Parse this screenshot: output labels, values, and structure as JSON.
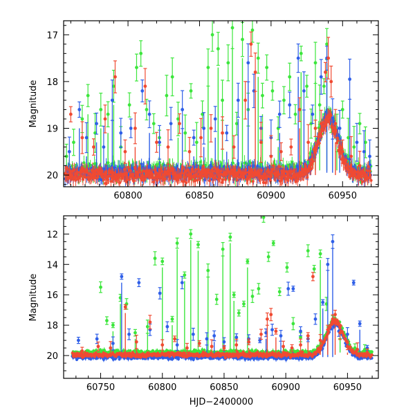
{
  "chart_data": [
    {
      "type": "scatter",
      "title": "",
      "xlabel": "",
      "ylabel": "Magnitude",
      "xlim": [
        60755,
        60975
      ],
      "ylim": [
        20.25,
        16.7
      ],
      "y_inverted": true,
      "xticks": [
        60800,
        60850,
        60900,
        60950
      ],
      "yticks": [
        17,
        18,
        19,
        20
      ],
      "grid": false,
      "legend": "none",
      "series": [
        {
          "color": "#3ce63c",
          "baseline_mag": 19.9,
          "points": [
            [
              60757,
              19.6
            ],
            [
              60762,
              19.3
            ],
            [
              60768,
              18.8
            ],
            [
              60772,
              18.3
            ],
            [
              60777,
              19.1
            ],
            [
              60781,
              18.6
            ],
            [
              60786,
              18.7
            ],
            [
              60790,
              18.1
            ],
            [
              60795,
              19.4
            ],
            [
              60801,
              18.5
            ],
            [
              60806,
              17.7
            ],
            [
              60809,
              17.4
            ],
            [
              60813,
              18.6
            ],
            [
              60818,
              18.9
            ],
            [
              60822,
              19.2
            ],
            [
              60827,
              18.3
            ],
            [
              60831,
              17.9
            ],
            [
              60835,
              18.8
            ],
            [
              60840,
              19.1
            ],
            [
              60844,
              18.2
            ],
            [
              60848,
              19.3
            ],
            [
              60852,
              18.7
            ],
            [
              60856,
              17.7
            ],
            [
              60859,
              17.0
            ],
            [
              60863,
              17.3
            ],
            [
              60866,
              18.4
            ],
            [
              60870,
              17.6
            ],
            [
              60873,
              16.85
            ],
            [
              60876,
              18.9
            ],
            [
              60880,
              17.1
            ],
            [
              60884,
              18.6
            ],
            [
              60887,
              16.9
            ],
            [
              60891,
              17.5
            ],
            [
              60894,
              18.3
            ],
            [
              60897,
              17.7
            ],
            [
              60901,
              18.2
            ],
            [
              60905,
              19.0
            ],
            [
              60909,
              18.4
            ],
            [
              60913,
              17.9
            ],
            [
              60917,
              18.7
            ],
            [
              60921,
              17.4
            ],
            [
              60925,
              18.1
            ],
            [
              60928,
              18.9
            ],
            [
              60931,
              17.6
            ],
            [
              60934,
              18.5
            ],
            [
              60937,
              18.1
            ],
            [
              60939,
              17.2
            ],
            [
              60942,
              18.9
            ],
            [
              60946,
              19.1
            ],
            [
              60950,
              18.6
            ],
            [
              60954,
              19.2
            ],
            [
              60958,
              19.4
            ],
            [
              60962,
              18.9
            ],
            [
              60966,
              19.3
            ]
          ]
        },
        {
          "color": "#2f5fe8",
          "baseline_mag": 19.95,
          "points": [
            [
              60759,
              19.5
            ],
            [
              60766,
              18.6
            ],
            [
              60771,
              19.2
            ],
            [
              60778,
              18.9
            ],
            [
              60783,
              19.4
            ],
            [
              60789,
              18.4
            ],
            [
              60795,
              19.1
            ],
            [
              60802,
              19.0
            ],
            [
              60810,
              18.2
            ],
            [
              60815,
              18.7
            ],
            [
              60822,
              19.3
            ],
            [
              60830,
              18.9
            ],
            [
              60838,
              18.6
            ],
            [
              60846,
              19.2
            ],
            [
              60853,
              19.0
            ],
            [
              60861,
              18.8
            ],
            [
              60869,
              19.1
            ],
            [
              60877,
              18.4
            ],
            [
              60884,
              17.6
            ],
            [
              60888,
              18.2
            ],
            [
              60893,
              19.0
            ],
            [
              60900,
              19.2
            ],
            [
              60906,
              18.7
            ],
            [
              60913,
              18.5
            ],
            [
              60919,
              17.5
            ],
            [
              60923,
              18.2
            ],
            [
              60929,
              18.7
            ],
            [
              60935,
              17.9
            ],
            [
              60939,
              17.5
            ],
            [
              60943,
              18.8
            ],
            [
              60948,
              19.0
            ],
            [
              60955,
              17.95
            ],
            [
              60960,
              19.3
            ],
            [
              60965,
              19.5
            ],
            [
              60969,
              19.6
            ]
          ]
        },
        {
          "color": "#f04a32",
          "baseline_mag": 20.0,
          "points": [
            [
              60760,
              18.7
            ],
            [
              60768,
              19.2
            ],
            [
              60776,
              19.4
            ],
            [
              60784,
              18.8
            ],
            [
              60791,
              17.9
            ],
            [
              60798,
              19.5
            ],
            [
              60805,
              19.0
            ],
            [
              60812,
              18.1
            ],
            [
              60820,
              19.3
            ],
            [
              60828,
              19.4
            ],
            [
              60836,
              18.9
            ],
            [
              60843,
              19.5
            ],
            [
              60851,
              19.2
            ],
            [
              60858,
              19.0
            ],
            [
              60866,
              19.1
            ],
            [
              60874,
              19.4
            ],
            [
              60882,
              18.4
            ],
            [
              60886,
              17.2
            ],
            [
              60889,
              17.8
            ],
            [
              60893,
              19.3
            ],
            [
              60900,
              19.6
            ],
            [
              60907,
              19.5
            ],
            [
              60914,
              19.4
            ],
            [
              60920,
              18.6
            ],
            [
              60926,
              19.3
            ],
            [
              60931,
              19.0
            ],
            [
              60935,
              18.9
            ],
            [
              60938,
              17.8
            ],
            [
              60940,
              17.5
            ],
            [
              60942,
              18.0
            ],
            [
              60945,
              18.9
            ],
            [
              60950,
              19.5
            ],
            [
              60956,
              19.6
            ],
            [
              60962,
              19.8
            ]
          ]
        }
      ]
    },
    {
      "type": "scatter",
      "title": "",
      "xlabel": "HJD−2400000",
      "ylabel": "Magnitude",
      "xlim": [
        60720,
        60975
      ],
      "ylim": [
        21.5,
        10.8
      ],
      "y_inverted": true,
      "xticks": [
        60750,
        60800,
        60850,
        60900,
        60950
      ],
      "yticks": [
        12,
        14,
        16,
        18,
        20
      ],
      "grid": false,
      "legend": "none",
      "series": [
        {
          "color": "#3ce63c",
          "baseline_mag": 19.8,
          "points": [
            [
              60750,
              15.5
            ],
            [
              60755,
              17.7
            ],
            [
              60760,
              18.0
            ],
            [
              60766,
              16.2
            ],
            [
              60771,
              16.6
            ],
            [
              60778,
              18.5
            ],
            [
              60788,
              18.1
            ],
            [
              60794,
              13.6
            ],
            [
              60800,
              13.8
            ],
            [
              60808,
              17.6
            ],
            [
              60812,
              12.6
            ],
            [
              60818,
              14.7
            ],
            [
              60823,
              12.0
            ],
            [
              60829,
              12.7
            ],
            [
              60837,
              14.4
            ],
            [
              60844,
              16.3
            ],
            [
              60849,
              13.0
            ],
            [
              60855,
              12.2
            ],
            [
              60858,
              16.0
            ],
            [
              60862,
              17.2
            ],
            [
              60866,
              16.6
            ],
            [
              60869,
              13.8
            ],
            [
              60873,
              16.1
            ],
            [
              60878,
              15.6
            ],
            [
              60882,
              10.9
            ],
            [
              60886,
              13.5
            ],
            [
              60890,
              12.6
            ],
            [
              60895,
              15.8
            ],
            [
              60901,
              14.2
            ],
            [
              60906,
              17.9
            ],
            [
              60912,
              18.8
            ],
            [
              60918,
              13.1
            ],
            [
              60923,
              14.3
            ],
            [
              60928,
              13.3
            ],
            [
              60933,
              16.6
            ],
            [
              60938,
              17.6
            ],
            [
              60944,
              18.5
            ],
            [
              60950,
              19.2
            ],
            [
              60956,
              19.5
            ],
            [
              60964,
              19.6
            ]
          ]
        },
        {
          "color": "#2f5fe8",
          "baseline_mag": 20.1,
          "points": [
            [
              60732,
              19.0
            ],
            [
              60747,
              18.9
            ],
            [
              60760,
              19.2
            ],
            [
              60767,
              14.8
            ],
            [
              60773,
              18.6
            ],
            [
              60781,
              15.2
            ],
            [
              60790,
              18.3
            ],
            [
              60798,
              15.9
            ],
            [
              60804,
              18.1
            ],
            [
              60812,
              19.3
            ],
            [
              60816,
              15.2
            ],
            [
              60825,
              18.6
            ],
            [
              60836,
              18.9
            ],
            [
              60842,
              18.7
            ],
            [
              60850,
              19.1
            ],
            [
              60860,
              18.8
            ],
            [
              60870,
              18.9
            ],
            [
              60879,
              19.0
            ],
            [
              60884,
              18.5
            ],
            [
              60889,
              18.3
            ],
            [
              60896,
              18.7
            ],
            [
              60902,
              15.6
            ],
            [
              60906,
              15.6
            ],
            [
              60912,
              18.4
            ],
            [
              60918,
              18.9
            ],
            [
              60924,
              17.6
            ],
            [
              60930,
              16.5
            ],
            [
              60934,
              14.0
            ],
            [
              60938,
              12.5
            ],
            [
              60943,
              18.4
            ],
            [
              60950,
              18.6
            ],
            [
              60955,
              15.2
            ],
            [
              60960,
              17.9
            ],
            [
              60966,
              19.5
            ]
          ]
        },
        {
          "color": "#f04a32",
          "baseline_mag": 19.95,
          "points": [
            [
              60735,
              19.7
            ],
            [
              60748,
              19.4
            ],
            [
              60758,
              19.5
            ],
            [
              60770,
              16.8
            ],
            [
              60779,
              19.1
            ],
            [
              60790,
              17.8
            ],
            [
              60800,
              19.3
            ],
            [
              60810,
              18.9
            ],
            [
              60820,
              19.5
            ],
            [
              60830,
              19.2
            ],
            [
              60840,
              19.4
            ],
            [
              60850,
              19.5
            ],
            [
              60860,
              19.3
            ],
            [
              60870,
              19.1
            ],
            [
              60880,
              18.6
            ],
            [
              60885,
              17.6
            ],
            [
              60888,
              17.3
            ],
            [
              60892,
              18.4
            ],
            [
              60898,
              19.4
            ],
            [
              60905,
              19.5
            ],
            [
              60912,
              19.3
            ],
            [
              60918,
              18.7
            ],
            [
              60922,
              14.8
            ],
            [
              60928,
              19.0
            ],
            [
              60934,
              18.3
            ],
            [
              60938,
              17.6
            ],
            [
              60940,
              17.3
            ],
            [
              60944,
              18.5
            ],
            [
              60950,
              19.4
            ],
            [
              60958,
              19.6
            ],
            [
              60966,
              19.8
            ]
          ]
        }
      ]
    }
  ]
}
